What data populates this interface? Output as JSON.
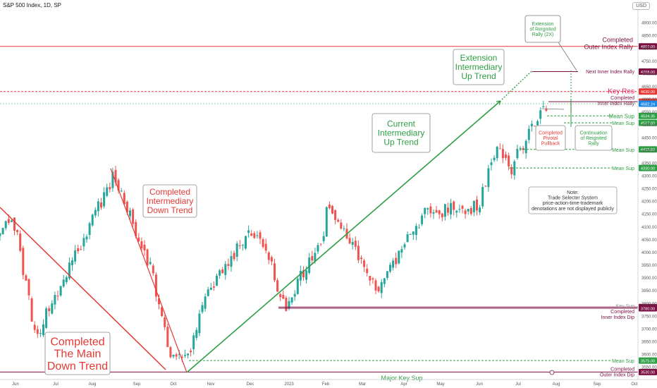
{
  "header": {
    "title": "S&P 500 Index, 1D, SP",
    "currency": "USD"
  },
  "colors": {
    "up": "#26a69a",
    "down": "#ef5350",
    "green_line": "#2e9e44",
    "red_line": "#e53935",
    "maroon": "#7b1042",
    "key_res": "#e91e63",
    "price_blue": "#1e88e5"
  },
  "chart_data": {
    "type": "candlestick",
    "title": "S&P 500 Index, 1D, SP",
    "x_ticks": [
      "Jun",
      "Jul",
      "Aug",
      "Sep",
      "Oct",
      "Nov",
      "Dec",
      "2023",
      "Feb",
      "Mar",
      "Apr",
      "May",
      "Jun",
      "Jul",
      "Aug",
      "Sep",
      "Oct"
    ],
    "y_ticks": [
      3550,
      3600,
      3650,
      3700,
      3750,
      3800,
      3850,
      3900,
      3950,
      4000,
      4050,
      4100,
      4150,
      4200,
      4250,
      4300,
      4350,
      4400,
      4450,
      4500,
      4550,
      4600,
      4650,
      4700,
      4750,
      4800,
      4850,
      4900
    ],
    "ylim": [
      3520,
      4950
    ],
    "scale": "linear",
    "price_path": [
      {
        "t": "2022-06-01",
        "v": 4101
      },
      {
        "t": "2022-06-16",
        "v": 3667
      },
      {
        "t": "2022-07-08",
        "v": 3900
      },
      {
        "t": "2022-08-16",
        "v": 4305
      },
      {
        "t": "2022-09-13",
        "v": 3932
      },
      {
        "t": "2022-09-30",
        "v": 3585
      },
      {
        "t": "2022-10-12",
        "v": 3577
      },
      {
        "t": "2022-10-24",
        "v": 3797
      },
      {
        "t": "2022-11-30",
        "v": 4080
      },
      {
        "t": "2022-12-13",
        "v": 4019
      },
      {
        "t": "2022-12-28",
        "v": 3783
      },
      {
        "t": "2023-01-31",
        "v": 4077
      },
      {
        "t": "2023-02-02",
        "v": 4179
      },
      {
        "t": "2023-03-13",
        "v": 3855
      },
      {
        "t": "2023-04-18",
        "v": 4154
      },
      {
        "t": "2023-05-31",
        "v": 4180
      },
      {
        "t": "2023-06-15",
        "v": 4426
      },
      {
        "t": "2023-06-26",
        "v": 4328
      },
      {
        "t": "2023-07-19",
        "v": 4565
      },
      {
        "t": "2023-07-27",
        "v": 4537
      },
      {
        "t": "2023-07-31",
        "v": 4589
      }
    ],
    "levels": [
      {
        "label": "Completed Outer Index Rally",
        "price_tag": "4807.00",
        "value": 4807,
        "kind": "completed_high"
      },
      {
        "label": "Next Inner Index Rally",
        "price_tag": "4708.00",
        "value": 4708,
        "kind": "target"
      },
      {
        "label": "Key Res",
        "price_tag": "4630.00",
        "value": 4630,
        "kind": "key_res"
      },
      {
        "label": "Completed Inner Index Rally",
        "price_tag": "4590.00",
        "value": 4590,
        "kind": "completed_high"
      },
      {
        "label": "",
        "price_tag": "4582.24",
        "value": 4582.24,
        "kind": "last_price"
      },
      {
        "label": "Mean Sup",
        "price_tag": "4534.35",
        "value": 4534.35,
        "kind": "mean_sup"
      },
      {
        "label": "Mean Sup",
        "price_tag": "4507.00",
        "value": 4507,
        "kind": "mean_sup"
      },
      {
        "label": "Mean Sup",
        "price_tag": "4403.00",
        "value": 4403,
        "kind": "mean_sup"
      },
      {
        "label": "Mean Sup",
        "price_tag": "4330.00",
        "value": 4330,
        "kind": "mean_sup"
      },
      {
        "label": "Key Sup",
        "price_tag": "3785.00",
        "value": 3785,
        "kind": "key_sup"
      },
      {
        "label": "Completed Inner Index Dip",
        "price_tag": "3780.00",
        "value": 3780,
        "kind": "completed_low"
      },
      {
        "label": "Mean Sup",
        "price_tag": "3575.00",
        "value": 3575,
        "kind": "mean_sup"
      },
      {
        "label": "Completed Outer Index Dip",
        "price_tag": "3530.00",
        "value": 3530,
        "kind": "completed_low"
      }
    ],
    "annotations": [
      {
        "text": [
          "Completed",
          "The Main",
          "Down Trend"
        ],
        "color": "#e53935"
      },
      {
        "text": [
          "Completed",
          "Intermediary",
          "Down Trend"
        ],
        "color": "#e53935"
      },
      {
        "text": [
          "Current",
          "Intermediary",
          "Up Trend"
        ],
        "color": "#2e9e44"
      },
      {
        "text": [
          "Extension",
          "Intermediary",
          "Up Trend"
        ],
        "color": "#2e9e44"
      },
      {
        "text": [
          "Extension",
          "of Reignited",
          "Rally (2X)"
        ],
        "color": "#2e9e44"
      },
      {
        "text": [
          "Completed",
          "Pivotal",
          "Pullback"
        ],
        "color": "#e53935"
      },
      {
        "text": [
          "Continuation",
          "of Reignited",
          "Rally"
        ],
        "color": "#2e9e44"
      },
      {
        "text": [
          "Note:",
          "Trade Selecter System",
          "price-action-time-trademark",
          "denotations are not displayed publicly"
        ],
        "color": "#333333"
      },
      {
        "text": [
          "Major Key Sup"
        ],
        "color": "#2e9e44"
      }
    ],
    "grid": false,
    "legend": "none"
  }
}
